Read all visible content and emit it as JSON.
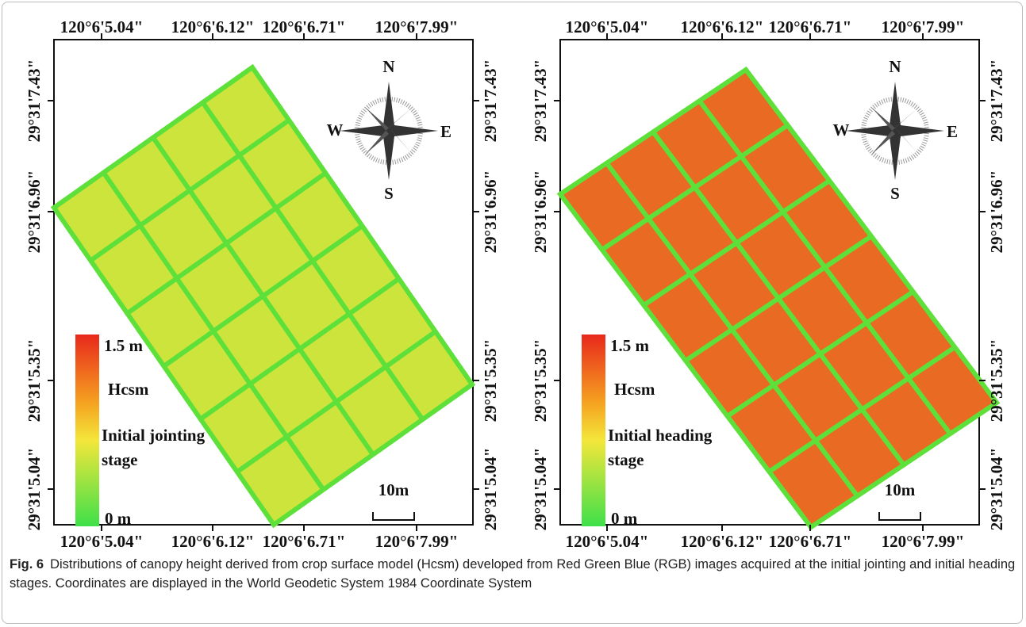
{
  "panels": [
    {
      "top_ticks": [
        "120°6'5.04\"",
        "120°6'6.12\"",
        "120°6'6.71\"",
        "120°6'7.99\""
      ],
      "bottom_ticks": [
        "120°6'5.04\"",
        "120°6'6.12\"",
        "120°6'6.71\"",
        "120°6'7.99\""
      ],
      "left_ticks": [
        "29°31'7.43\"",
        "29°31'6.96\"",
        "29°31'5.35\"",
        "29°31'5.04\""
      ],
      "right_ticks": [
        "29°31'7.43\"",
        "29°31'6.96\"",
        "29°31'5.35\"",
        "29°31'5.04\""
      ],
      "compass": {
        "north": "N",
        "south": "S",
        "west": "W",
        "east": "E"
      },
      "legend": {
        "max": "1.5 m",
        "title": "Hcsm",
        "stage": [
          "Initial jointing",
          "stage"
        ],
        "min": "0 m"
      },
      "scale_bar": "10m"
    },
    {
      "top_ticks": [
        "120°6'5.04\"",
        "120°6'6.12\"",
        "120°6'6.71\"",
        "120°6'7.99\""
      ],
      "bottom_ticks": [
        "120°6'5.04\"",
        "120°6'6.12\"",
        "120°6'6.71\"",
        "120°6'7.99\""
      ],
      "left_ticks": [
        "29°31'7.43\"",
        "29°31'6.96\"",
        "29°31'5.35\"",
        "29°31'5.04\""
      ],
      "right_ticks": [
        "29°31'7.43\"",
        "29°31'6.96\"",
        "29°31'5.35\"",
        "29°31'5.04\""
      ],
      "compass": {
        "north": "N",
        "south": "S",
        "west": "W",
        "east": "E"
      },
      "legend": {
        "max": "1.5 m",
        "title": "Hcsm",
        "stage": [
          "Initial heading",
          "stage"
        ],
        "min": "0 m"
      },
      "scale_bar": "10m"
    }
  ],
  "caption": {
    "label": "Fig. 6",
    "text": "Distributions of canopy height derived from crop surface model (Hcsm) developed from Red Green Blue (RGB) images acquired at the initial jointing and initial heading stages. Coordinates are displayed in the World Geodetic System 1984 Coordinate System"
  }
}
